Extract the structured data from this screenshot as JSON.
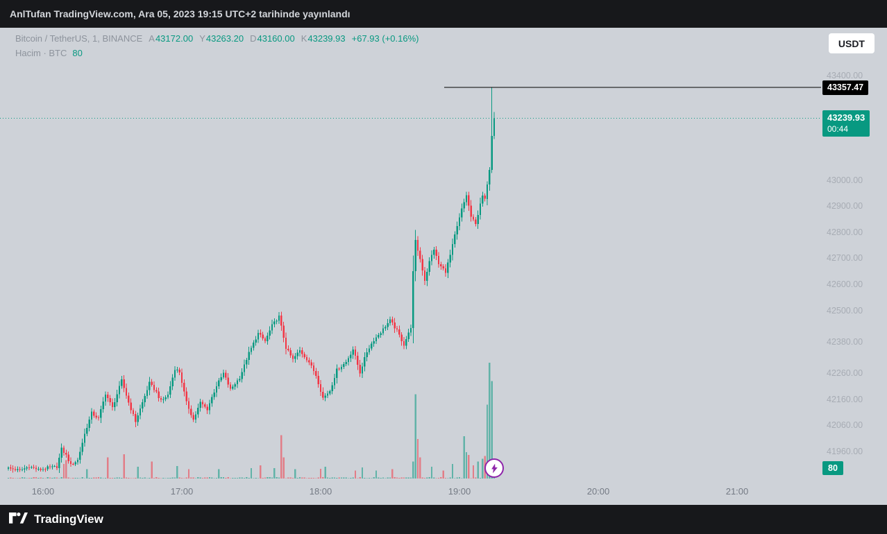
{
  "publish_bar": {
    "text": "AnlTufan TradingView.com, Ara 05, 2023 19:15 UTC+2 tarihinde yayınlandı"
  },
  "toolbar": {
    "currency_button": "USDT"
  },
  "legend": {
    "title": "Bitcoin / TetherUS, 1, BINANCE",
    "ohlc": [
      {
        "label": "A",
        "value": "43172.00"
      },
      {
        "label": "Y",
        "value": "43263.20"
      },
      {
        "label": "D",
        "value": "43160.00"
      },
      {
        "label": "K",
        "value": "43239.93"
      }
    ],
    "change": "+67.93 (+0.16%)",
    "volume_label": "Hacim · BTC",
    "volume_value": "80"
  },
  "price_axis": {
    "line_label": "43357.47",
    "last_price_label": "43239.93",
    "countdown": "00:44",
    "volume_badge": "80",
    "labels": [
      {
        "price": 43400,
        "text": "43400.00"
      },
      {
        "price": 43000,
        "text": "43000.00"
      },
      {
        "price": 42900,
        "text": "42900.00"
      },
      {
        "price": 42800,
        "text": "42800.00"
      },
      {
        "price": 42700,
        "text": "42700.00"
      },
      {
        "price": 42600,
        "text": "42600.00"
      },
      {
        "price": 42500,
        "text": "42500.00"
      },
      {
        "price": 42380,
        "text": "42380.00"
      },
      {
        "price": 42260,
        "text": "42260.00"
      },
      {
        "price": 42160,
        "text": "42160.00"
      },
      {
        "price": 42060,
        "text": "42060.00"
      },
      {
        "price": 41960,
        "text": "41960.00"
      }
    ]
  },
  "time_axis": {
    "labels": [
      {
        "minute": 15,
        "text": "16:00"
      },
      {
        "minute": 75,
        "text": "17:00"
      },
      {
        "minute": 135,
        "text": "18:00"
      },
      {
        "minute": 195,
        "text": "19:00"
      },
      {
        "minute": 255,
        "text": "20:00"
      },
      {
        "minute": 315,
        "text": "21:00"
      }
    ]
  },
  "footer": {
    "brand": "TradingView"
  },
  "chart_data": {
    "type": "candlestick",
    "title": "Bitcoin / TetherUS, 1, BINANCE",
    "symbol": "BTCUSDT",
    "exchange": "BINANCE",
    "interval_minutes": 1,
    "session_start": "15:45",
    "session_end": "19:15",
    "minutes": 210,
    "last_price": 43239.93,
    "change_abs": 67.93,
    "change_pct": 0.16,
    "horizontal_line_price": 43357.47,
    "current_volume_btc": 80,
    "visible_price_range": [
      41860,
      43580
    ],
    "visible_time_labels": [
      "16:00",
      "17:00",
      "18:00",
      "19:00",
      "20:00",
      "21:00"
    ],
    "last_candle": {
      "open": 43172.0,
      "high": 43263.2,
      "low": 43160.0,
      "close": 43239.93,
      "volume": 80
    },
    "price_path": [
      [
        0,
        41900
      ],
      [
        6,
        41890
      ],
      [
        10,
        41906
      ],
      [
        14,
        41892
      ],
      [
        18,
        41900
      ],
      [
        22,
        41904
      ],
      [
        24,
        41972
      ],
      [
        26,
        41948
      ],
      [
        28,
        41910
      ],
      [
        31,
        41930
      ],
      [
        34,
        42030
      ],
      [
        37,
        42110
      ],
      [
        40,
        42088
      ],
      [
        43,
        42185
      ],
      [
        46,
        42130
      ],
      [
        50,
        42235
      ],
      [
        53,
        42150
      ],
      [
        56,
        42078
      ],
      [
        59,
        42150
      ],
      [
        62,
        42225
      ],
      [
        65,
        42190
      ],
      [
        67,
        42155
      ],
      [
        70,
        42180
      ],
      [
        73,
        42280
      ],
      [
        75,
        42268
      ],
      [
        78,
        42150
      ],
      [
        81,
        42085
      ],
      [
        84,
        42150
      ],
      [
        87,
        42125
      ],
      [
        91,
        42215
      ],
      [
        94,
        42262
      ],
      [
        97,
        42200
      ],
      [
        101,
        42245
      ],
      [
        105,
        42340
      ],
      [
        109,
        42415
      ],
      [
        112,
        42385
      ],
      [
        115,
        42445
      ],
      [
        118,
        42480
      ],
      [
        121,
        42360
      ],
      [
        124,
        42315
      ],
      [
        127,
        42350
      ],
      [
        131,
        42305
      ],
      [
        134,
        42255
      ],
      [
        137,
        42168
      ],
      [
        140,
        42195
      ],
      [
        143,
        42275
      ],
      [
        147,
        42305
      ],
      [
        150,
        42355
      ],
      [
        153,
        42265
      ],
      [
        156,
        42345
      ],
      [
        159,
        42390
      ],
      [
        162,
        42420
      ],
      [
        166,
        42465
      ],
      [
        169,
        42425
      ],
      [
        172,
        42372
      ],
      [
        174,
        42415
      ],
      [
        175,
        42440
      ],
      [
        176,
        42650
      ],
      [
        177,
        42768
      ],
      [
        179,
        42700
      ],
      [
        181,
        42618
      ],
      [
        183,
        42690
      ],
      [
        185,
        42738
      ],
      [
        187,
        42680
      ],
      [
        190,
        42652
      ],
      [
        192,
        42715
      ],
      [
        194,
        42790
      ],
      [
        197,
        42890
      ],
      [
        199,
        42945
      ],
      [
        201,
        42862
      ],
      [
        203,
        42832
      ],
      [
        205,
        42915
      ],
      [
        206,
        42938
      ],
      [
        207,
        42930
      ]
    ],
    "final_candles": [
      {
        "minute": 207,
        "open": 42930,
        "high": 42998,
        "low": 42906,
        "close": 42985
      },
      {
        "minute": 208,
        "open": 42985,
        "high": 43052,
        "low": 42962,
        "close": 43042
      },
      {
        "minute": 209,
        "open": 43042,
        "high": 43357.47,
        "low": 43030,
        "close": 43172
      },
      {
        "minute": 210,
        "open": 43172,
        "high": 43263.2,
        "low": 43160,
        "close": 43239.93
      }
    ],
    "volume_spikes": [
      [
        24,
        110
      ],
      [
        25,
        140
      ],
      [
        34,
        70
      ],
      [
        43,
        160
      ],
      [
        50,
        185
      ],
      [
        56,
        90
      ],
      [
        62,
        130
      ],
      [
        73,
        95
      ],
      [
        78,
        70
      ],
      [
        91,
        70
      ],
      [
        105,
        80
      ],
      [
        109,
        100
      ],
      [
        115,
        80
      ],
      [
        118,
        330
      ],
      [
        119,
        160
      ],
      [
        124,
        70
      ],
      [
        135,
        75
      ],
      [
        137,
        90
      ],
      [
        150,
        60
      ],
      [
        153,
        85
      ],
      [
        159,
        60
      ],
      [
        166,
        70
      ],
      [
        175,
        130
      ],
      [
        176,
        640
      ],
      [
        177,
        300
      ],
      [
        178,
        160
      ],
      [
        183,
        90
      ],
      [
        188,
        60
      ],
      [
        192,
        110
      ],
      [
        197,
        320
      ],
      [
        198,
        200
      ],
      [
        199,
        180
      ],
      [
        201,
        100
      ],
      [
        203,
        130
      ],
      [
        205,
        150
      ],
      [
        206,
        170
      ],
      [
        207,
        560
      ],
      [
        208,
        880
      ],
      [
        209,
        740
      ],
      [
        210,
        80
      ]
    ],
    "colors": {
      "up": "#089981",
      "down": "#f23645",
      "volume_up": "rgba(8,153,129,0.55)",
      "volume_down": "rgba(242,54,69,0.55)",
      "line": "#000000",
      "label_up_bg": "#089981",
      "label_line_bg": "#000000",
      "marker": "#8e24aa",
      "background": "#ced2d8"
    }
  }
}
